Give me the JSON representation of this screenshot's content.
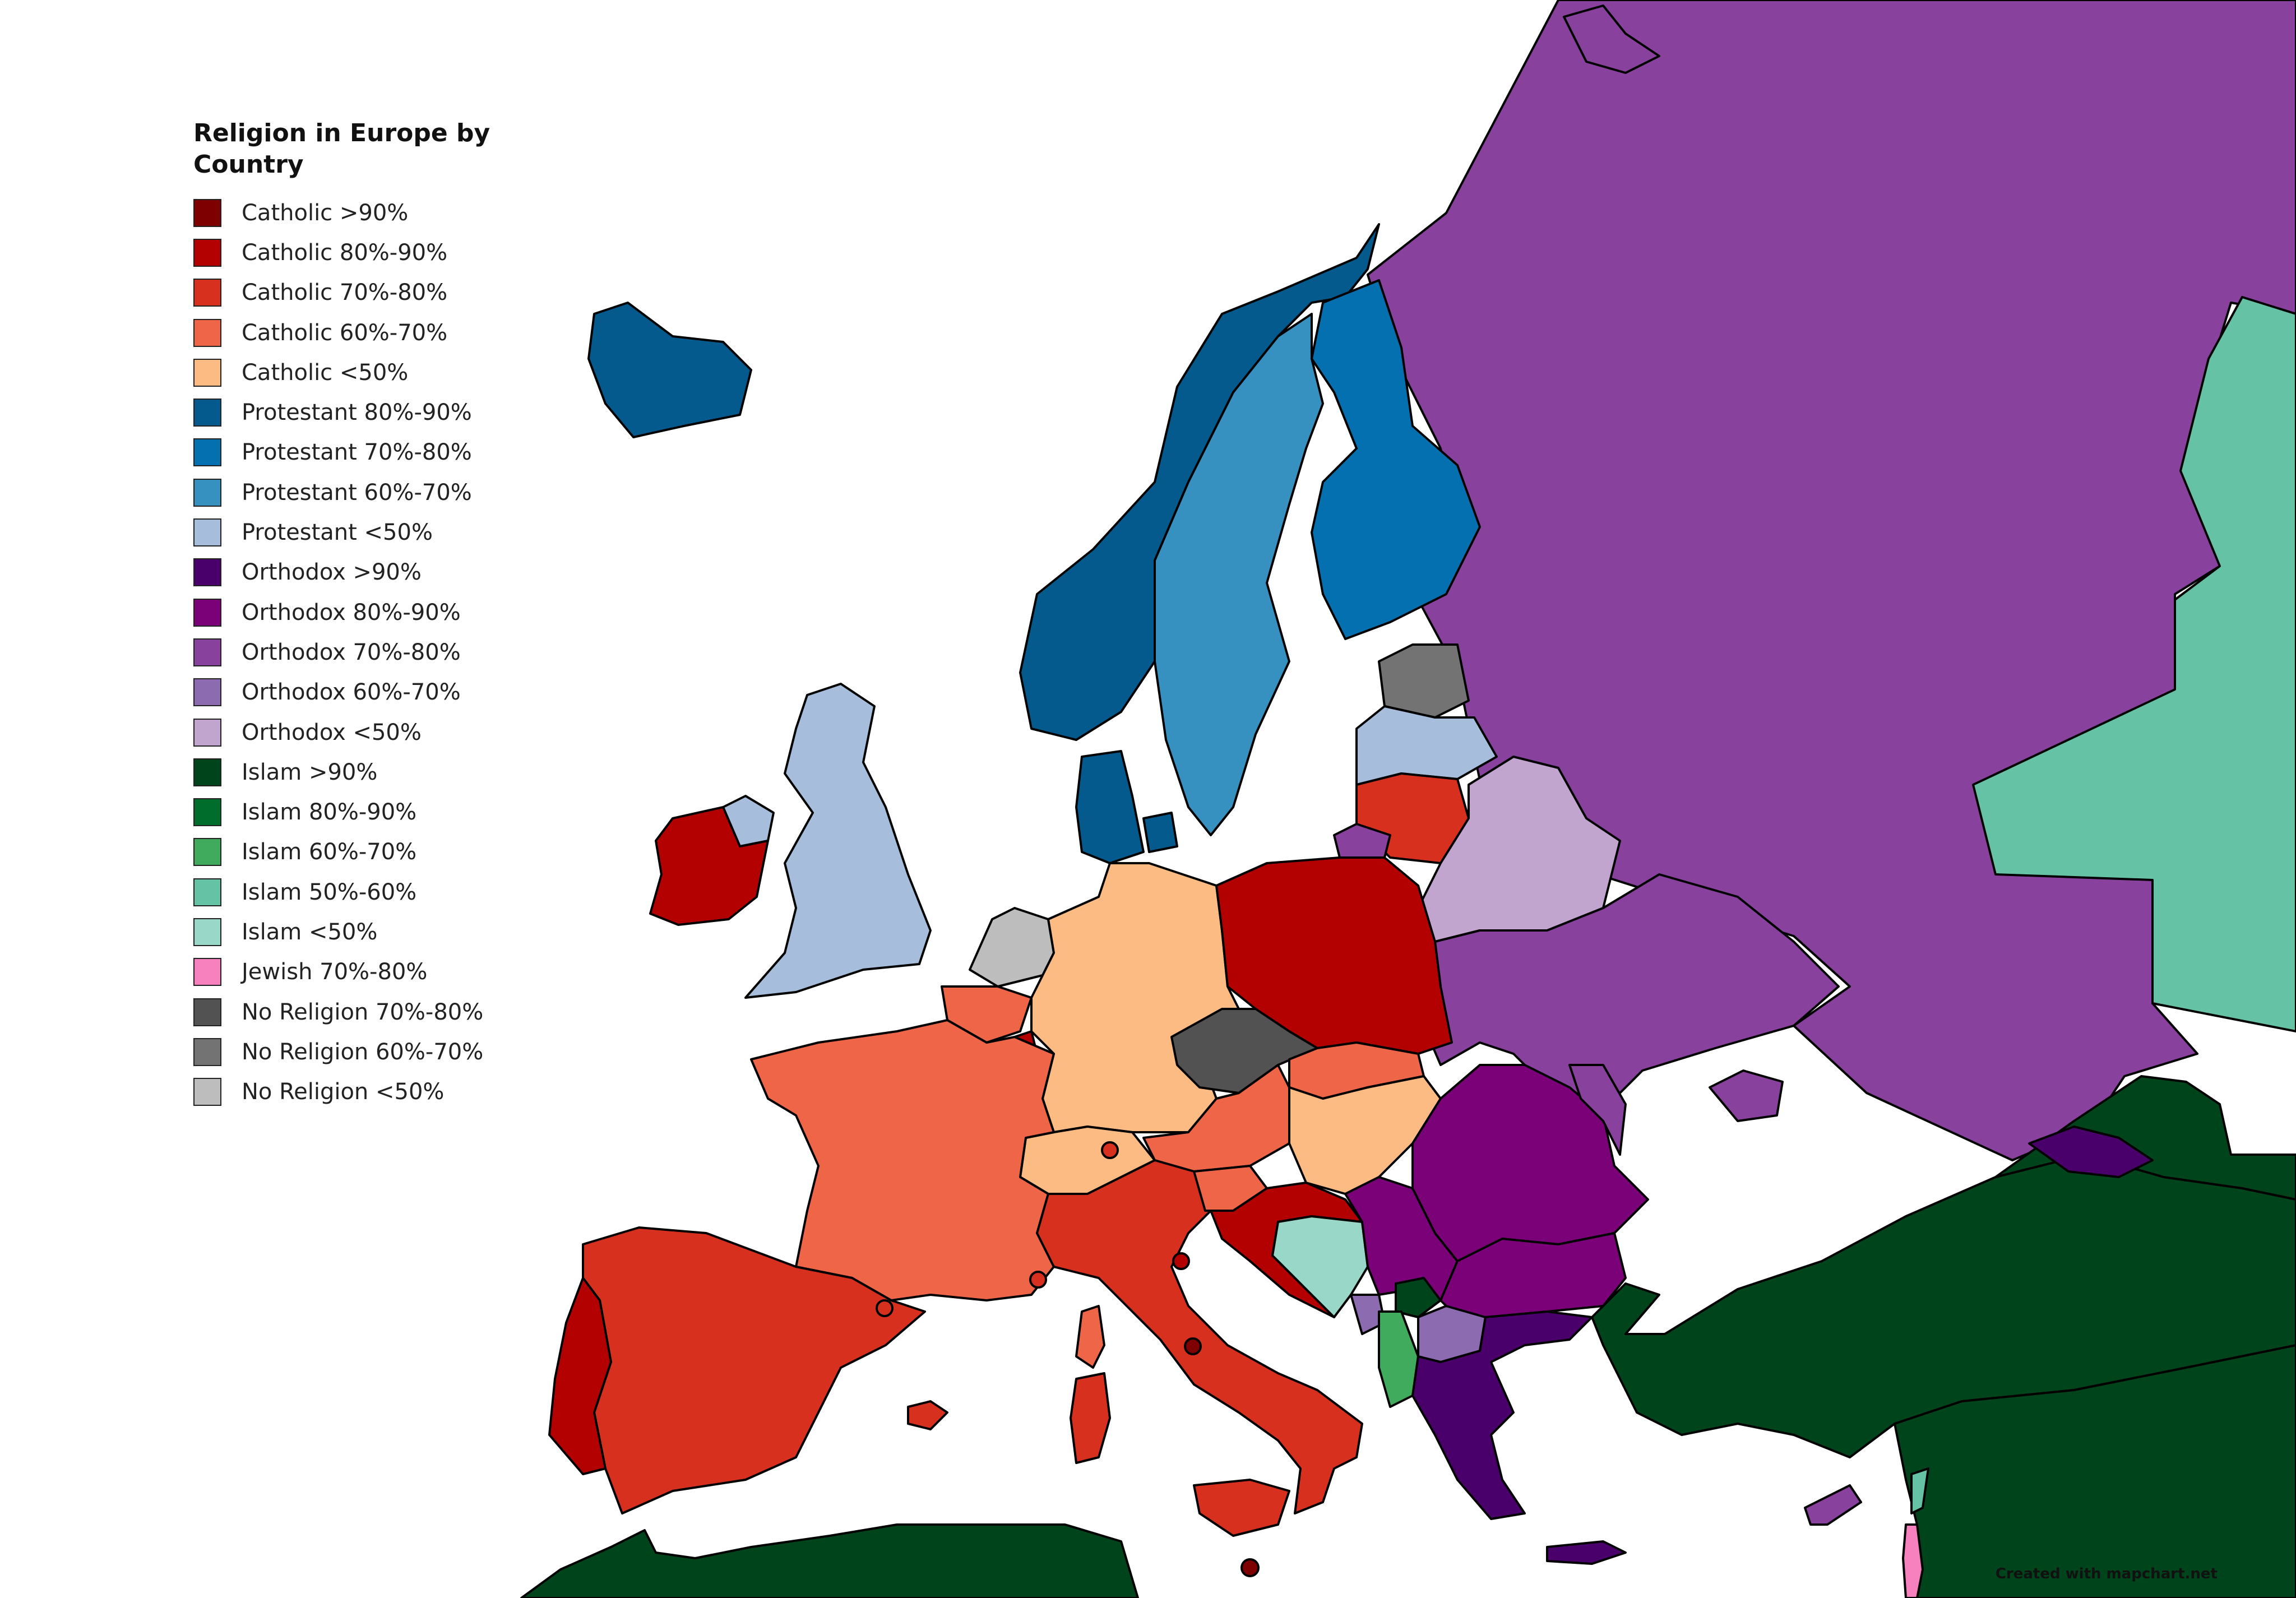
{
  "legend": {
    "title": "Religion in Europe by Country",
    "items": [
      {
        "label": "Catholic >90%",
        "color": "#7f0000"
      },
      {
        "label": "Catholic 80%-90%",
        "color": "#b30000"
      },
      {
        "label": "Catholic 70%-80%",
        "color": "#d7301f"
      },
      {
        "label": "Catholic 60%-70%",
        "color": "#ef6548"
      },
      {
        "label": "Catholic <50%",
        "color": "#fdbb84"
      },
      {
        "label": "Protestant 80%-90%",
        "color": "#045a8d"
      },
      {
        "label": "Protestant 70%-80%",
        "color": "#0570b0"
      },
      {
        "label": "Protestant 60%-70%",
        "color": "#3690c0"
      },
      {
        "label": "Protestant <50%",
        "color": "#a6bddb"
      },
      {
        "label": "Orthodox >90%",
        "color": "#49006a"
      },
      {
        "label": "Orthodox 80%-90%",
        "color": "#7a0177"
      },
      {
        "label": "Orthodox 70%-80%",
        "color": "#88419d"
      },
      {
        "label": "Orthodox 60%-70%",
        "color": "#8c6bb1"
      },
      {
        "label": "Orthodox <50%",
        "color": "#c2a5cf"
      },
      {
        "label": "Islam >90%",
        "color": "#00441b"
      },
      {
        "label": "Islam 80%-90%",
        "color": "#006d2c"
      },
      {
        "label": "Islam 60%-70%",
        "color": "#41ab5d"
      },
      {
        "label": "Islam 50%-60%",
        "color": "#66c2a4"
      },
      {
        "label": "Islam <50%",
        "color": "#99d8c9"
      },
      {
        "label": "Jewish 70%-80%",
        "color": "#f781bf"
      },
      {
        "label": "No Religion 70%-80%",
        "color": "#525252"
      },
      {
        "label": "No Religion 60%-70%",
        "color": "#737373"
      },
      {
        "label": "No Religion <50%",
        "color": "#bdbdbd"
      }
    ]
  },
  "credit": "Created with mapchart.net"
}
